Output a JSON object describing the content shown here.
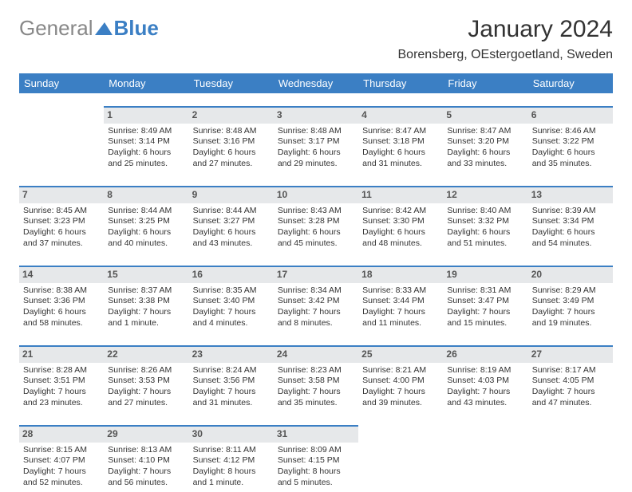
{
  "logo": {
    "text_gray": "General",
    "text_blue": "Blue"
  },
  "title": "January 2024",
  "location": "Borensberg, OEstergoetland, Sweden",
  "colors": {
    "header_bg": "#3b7fc4",
    "header_text": "#ffffff",
    "day_num_bg": "#e6e8ea",
    "border": "#3b7fc4",
    "body_text": "#333333",
    "background": "#ffffff"
  },
  "weekdays": [
    "Sunday",
    "Monday",
    "Tuesday",
    "Wednesday",
    "Thursday",
    "Friday",
    "Saturday"
  ],
  "rows": [
    [
      {
        "num": "",
        "sunrise": "",
        "sunset": "",
        "daylight1": "",
        "daylight2": ""
      },
      {
        "num": "1",
        "sunrise": "Sunrise: 8:49 AM",
        "sunset": "Sunset: 3:14 PM",
        "daylight1": "Daylight: 6 hours",
        "daylight2": "and 25 minutes."
      },
      {
        "num": "2",
        "sunrise": "Sunrise: 8:48 AM",
        "sunset": "Sunset: 3:16 PM",
        "daylight1": "Daylight: 6 hours",
        "daylight2": "and 27 minutes."
      },
      {
        "num": "3",
        "sunrise": "Sunrise: 8:48 AM",
        "sunset": "Sunset: 3:17 PM",
        "daylight1": "Daylight: 6 hours",
        "daylight2": "and 29 minutes."
      },
      {
        "num": "4",
        "sunrise": "Sunrise: 8:47 AM",
        "sunset": "Sunset: 3:18 PM",
        "daylight1": "Daylight: 6 hours",
        "daylight2": "and 31 minutes."
      },
      {
        "num": "5",
        "sunrise": "Sunrise: 8:47 AM",
        "sunset": "Sunset: 3:20 PM",
        "daylight1": "Daylight: 6 hours",
        "daylight2": "and 33 minutes."
      },
      {
        "num": "6",
        "sunrise": "Sunrise: 8:46 AM",
        "sunset": "Sunset: 3:22 PM",
        "daylight1": "Daylight: 6 hours",
        "daylight2": "and 35 minutes."
      }
    ],
    [
      {
        "num": "7",
        "sunrise": "Sunrise: 8:45 AM",
        "sunset": "Sunset: 3:23 PM",
        "daylight1": "Daylight: 6 hours",
        "daylight2": "and 37 minutes."
      },
      {
        "num": "8",
        "sunrise": "Sunrise: 8:44 AM",
        "sunset": "Sunset: 3:25 PM",
        "daylight1": "Daylight: 6 hours",
        "daylight2": "and 40 minutes."
      },
      {
        "num": "9",
        "sunrise": "Sunrise: 8:44 AM",
        "sunset": "Sunset: 3:27 PM",
        "daylight1": "Daylight: 6 hours",
        "daylight2": "and 43 minutes."
      },
      {
        "num": "10",
        "sunrise": "Sunrise: 8:43 AM",
        "sunset": "Sunset: 3:28 PM",
        "daylight1": "Daylight: 6 hours",
        "daylight2": "and 45 minutes."
      },
      {
        "num": "11",
        "sunrise": "Sunrise: 8:42 AM",
        "sunset": "Sunset: 3:30 PM",
        "daylight1": "Daylight: 6 hours",
        "daylight2": "and 48 minutes."
      },
      {
        "num": "12",
        "sunrise": "Sunrise: 8:40 AM",
        "sunset": "Sunset: 3:32 PM",
        "daylight1": "Daylight: 6 hours",
        "daylight2": "and 51 minutes."
      },
      {
        "num": "13",
        "sunrise": "Sunrise: 8:39 AM",
        "sunset": "Sunset: 3:34 PM",
        "daylight1": "Daylight: 6 hours",
        "daylight2": "and 54 minutes."
      }
    ],
    [
      {
        "num": "14",
        "sunrise": "Sunrise: 8:38 AM",
        "sunset": "Sunset: 3:36 PM",
        "daylight1": "Daylight: 6 hours",
        "daylight2": "and 58 minutes."
      },
      {
        "num": "15",
        "sunrise": "Sunrise: 8:37 AM",
        "sunset": "Sunset: 3:38 PM",
        "daylight1": "Daylight: 7 hours",
        "daylight2": "and 1 minute."
      },
      {
        "num": "16",
        "sunrise": "Sunrise: 8:35 AM",
        "sunset": "Sunset: 3:40 PM",
        "daylight1": "Daylight: 7 hours",
        "daylight2": "and 4 minutes."
      },
      {
        "num": "17",
        "sunrise": "Sunrise: 8:34 AM",
        "sunset": "Sunset: 3:42 PM",
        "daylight1": "Daylight: 7 hours",
        "daylight2": "and 8 minutes."
      },
      {
        "num": "18",
        "sunrise": "Sunrise: 8:33 AM",
        "sunset": "Sunset: 3:44 PM",
        "daylight1": "Daylight: 7 hours",
        "daylight2": "and 11 minutes."
      },
      {
        "num": "19",
        "sunrise": "Sunrise: 8:31 AM",
        "sunset": "Sunset: 3:47 PM",
        "daylight1": "Daylight: 7 hours",
        "daylight2": "and 15 minutes."
      },
      {
        "num": "20",
        "sunrise": "Sunrise: 8:29 AM",
        "sunset": "Sunset: 3:49 PM",
        "daylight1": "Daylight: 7 hours",
        "daylight2": "and 19 minutes."
      }
    ],
    [
      {
        "num": "21",
        "sunrise": "Sunrise: 8:28 AM",
        "sunset": "Sunset: 3:51 PM",
        "daylight1": "Daylight: 7 hours",
        "daylight2": "and 23 minutes."
      },
      {
        "num": "22",
        "sunrise": "Sunrise: 8:26 AM",
        "sunset": "Sunset: 3:53 PM",
        "daylight1": "Daylight: 7 hours",
        "daylight2": "and 27 minutes."
      },
      {
        "num": "23",
        "sunrise": "Sunrise: 8:24 AM",
        "sunset": "Sunset: 3:56 PM",
        "daylight1": "Daylight: 7 hours",
        "daylight2": "and 31 minutes."
      },
      {
        "num": "24",
        "sunrise": "Sunrise: 8:23 AM",
        "sunset": "Sunset: 3:58 PM",
        "daylight1": "Daylight: 7 hours",
        "daylight2": "and 35 minutes."
      },
      {
        "num": "25",
        "sunrise": "Sunrise: 8:21 AM",
        "sunset": "Sunset: 4:00 PM",
        "daylight1": "Daylight: 7 hours",
        "daylight2": "and 39 minutes."
      },
      {
        "num": "26",
        "sunrise": "Sunrise: 8:19 AM",
        "sunset": "Sunset: 4:03 PM",
        "daylight1": "Daylight: 7 hours",
        "daylight2": "and 43 minutes."
      },
      {
        "num": "27",
        "sunrise": "Sunrise: 8:17 AM",
        "sunset": "Sunset: 4:05 PM",
        "daylight1": "Daylight: 7 hours",
        "daylight2": "and 47 minutes."
      }
    ],
    [
      {
        "num": "28",
        "sunrise": "Sunrise: 8:15 AM",
        "sunset": "Sunset: 4:07 PM",
        "daylight1": "Daylight: 7 hours",
        "daylight2": "and 52 minutes."
      },
      {
        "num": "29",
        "sunrise": "Sunrise: 8:13 AM",
        "sunset": "Sunset: 4:10 PM",
        "daylight1": "Daylight: 7 hours",
        "daylight2": "and 56 minutes."
      },
      {
        "num": "30",
        "sunrise": "Sunrise: 8:11 AM",
        "sunset": "Sunset: 4:12 PM",
        "daylight1": "Daylight: 8 hours",
        "daylight2": "and 1 minute."
      },
      {
        "num": "31",
        "sunrise": "Sunrise: 8:09 AM",
        "sunset": "Sunset: 4:15 PM",
        "daylight1": "Daylight: 8 hours",
        "daylight2": "and 5 minutes."
      },
      {
        "num": "",
        "sunrise": "",
        "sunset": "",
        "daylight1": "",
        "daylight2": ""
      },
      {
        "num": "",
        "sunrise": "",
        "sunset": "",
        "daylight1": "",
        "daylight2": ""
      },
      {
        "num": "",
        "sunrise": "",
        "sunset": "",
        "daylight1": "",
        "daylight2": ""
      }
    ]
  ]
}
